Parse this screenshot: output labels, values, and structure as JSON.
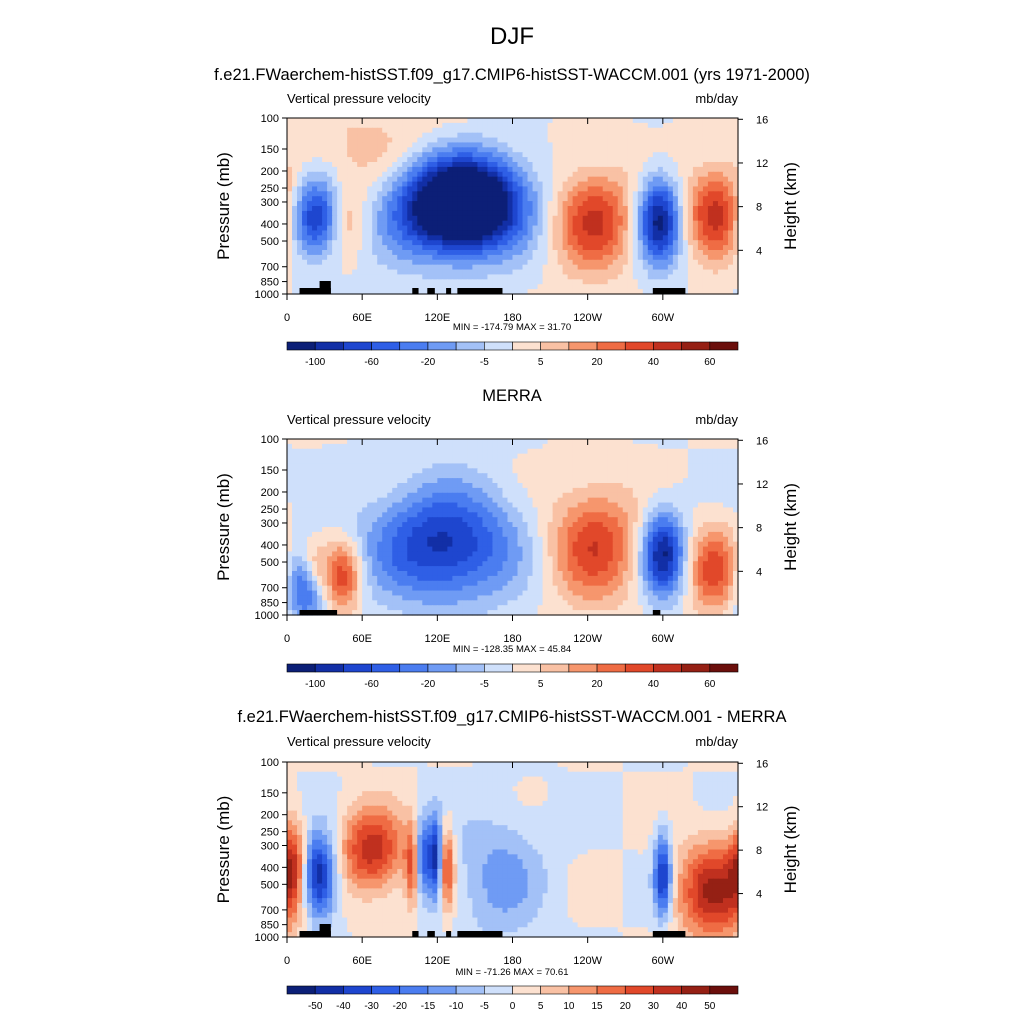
{
  "page_title": "DJF",
  "chart_data": [
    {
      "type": "heatmap",
      "title": "f.e21.FWaerchem-histSST.f09_g17.CMIP6-histSST-WACCM.001 (yrs 1971-2000)",
      "variable": "Vertical pressure velocity",
      "units": "mb/day",
      "ylabel": "Pressure (mb)",
      "y2label": "Height (km)",
      "xticks": [
        "0",
        "60E",
        "120E",
        "180",
        "120W",
        "60W"
      ],
      "yticks": [
        "100",
        "150",
        "200",
        "250",
        "300",
        "400",
        "500",
        "700",
        "850",
        "1000"
      ],
      "y2ticks": [
        "16",
        "12",
        "8",
        "4"
      ],
      "stats": "MIN = -174.79  MAX =  31.70",
      "colorbar_ticks": [
        "-100",
        "-60",
        "-20",
        "-5",
        "5",
        "20",
        "40",
        "60"
      ],
      "min": -174.79,
      "max": 31.7,
      "features": [
        {
          "lon": 25,
          "p": 370,
          "wx": 18,
          "wp": 0.55,
          "amp": -0.95
        },
        {
          "lon": 45,
          "p": 380,
          "wx": 12,
          "wp": 0.5,
          "amp": 0.55
        },
        {
          "lon": 125,
          "p": 320,
          "wx": 35,
          "wp": 0.7,
          "amp": -0.95
        },
        {
          "lon": 150,
          "p": 300,
          "wx": 30,
          "wp": 0.65,
          "amp": -0.9
        },
        {
          "lon": 245,
          "p": 380,
          "wx": 22,
          "wp": 0.7,
          "amp": 0.65
        },
        {
          "lon": 297,
          "p": 380,
          "wx": 12,
          "wp": 0.6,
          "amp": -0.95
        },
        {
          "lon": 344,
          "p": 350,
          "wx": 18,
          "wp": 0.6,
          "amp": 0.7
        },
        {
          "lon": 75,
          "p": 180,
          "wx": 55,
          "wp": 0.9,
          "amp": 0.2
        }
      ]
    },
    {
      "type": "heatmap",
      "title": "MERRA",
      "variable": "Vertical pressure velocity",
      "units": "mb/day",
      "ylabel": "Pressure (mb)",
      "y2label": "Height (km)",
      "xticks": [
        "0",
        "60E",
        "120E",
        "180",
        "120W",
        "60W"
      ],
      "yticks": [
        "100",
        "150",
        "200",
        "250",
        "300",
        "400",
        "500",
        "700",
        "850",
        "1000"
      ],
      "y2ticks": [
        "16",
        "12",
        "8",
        "4"
      ],
      "stats": "MIN = -128.35  MAX =  45.84",
      "colorbar_ticks": [
        "-100",
        "-60",
        "-20",
        "-5",
        "5",
        "20",
        "40",
        "60"
      ],
      "min": -128.35,
      "max": 45.84,
      "features": [
        {
          "lon": 15,
          "p": 650,
          "wx": 10,
          "wp": 0.5,
          "amp": -0.8
        },
        {
          "lon": 20,
          "p": 550,
          "wx": 8,
          "wp": 0.4,
          "amp": 0.55
        },
        {
          "lon": 45,
          "p": 600,
          "wx": 10,
          "wp": 0.5,
          "amp": 0.6
        },
        {
          "lon": 125,
          "p": 400,
          "wx": 40,
          "wp": 0.8,
          "amp": -0.8
        },
        {
          "lon": 245,
          "p": 400,
          "wx": 25,
          "wp": 0.8,
          "amp": 0.6
        },
        {
          "lon": 300,
          "p": 450,
          "wx": 12,
          "wp": 0.6,
          "amp": -0.9
        },
        {
          "lon": 340,
          "p": 550,
          "wx": 14,
          "wp": 0.6,
          "amp": 0.55
        }
      ]
    },
    {
      "type": "heatmap",
      "title": "f.e21.FWaerchem-histSST.f09_g17.CMIP6-histSST-WACCM.001 - MERRA",
      "variable": "Vertical pressure velocity",
      "units": "mb/day",
      "ylabel": "Pressure (mb)",
      "y2label": "Height (km)",
      "xticks": [
        "0",
        "60E",
        "120E",
        "180",
        "120W",
        "60W"
      ],
      "yticks": [
        "100",
        "150",
        "200",
        "250",
        "300",
        "400",
        "500",
        "700",
        "850",
        "1000"
      ],
      "y2ticks": [
        "16",
        "12",
        "8",
        "4"
      ],
      "stats": "MIN = -71.26  MAX =  70.61",
      "colorbar_ticks": [
        "-50",
        "-40",
        "-30",
        "-20",
        "-15",
        "-10",
        "-5",
        "0",
        "5",
        "10",
        "15",
        "20",
        "30",
        "40",
        "50"
      ],
      "min": -71.26,
      "max": 70.61,
      "features": [
        {
          "lon": 5,
          "p": 380,
          "wx": 8,
          "wp": 0.6,
          "amp": 0.6
        },
        {
          "lon": 25,
          "p": 450,
          "wx": 10,
          "wp": 0.6,
          "amp": -0.95
        },
        {
          "lon": 68,
          "p": 320,
          "wx": 18,
          "wp": 0.6,
          "amp": 0.7
        },
        {
          "lon": 100,
          "p": 400,
          "wx": 4,
          "wp": 0.6,
          "amp": 0.5
        },
        {
          "lon": 108,
          "p": 350,
          "wx": 4,
          "wp": 0.6,
          "amp": -0.6
        },
        {
          "lon": 118,
          "p": 350,
          "wx": 4,
          "wp": 0.6,
          "amp": -0.8
        },
        {
          "lon": 128,
          "p": 400,
          "wx": 4,
          "wp": 0.6,
          "amp": 0.6
        },
        {
          "lon": 170,
          "p": 450,
          "wx": 25,
          "wp": 0.9,
          "amp": -0.3
        },
        {
          "lon": 300,
          "p": 450,
          "wx": 5,
          "wp": 0.6,
          "amp": -0.8
        },
        {
          "lon": 340,
          "p": 550,
          "wx": 20,
          "wp": 0.7,
          "amp": 0.75
        }
      ]
    }
  ]
}
